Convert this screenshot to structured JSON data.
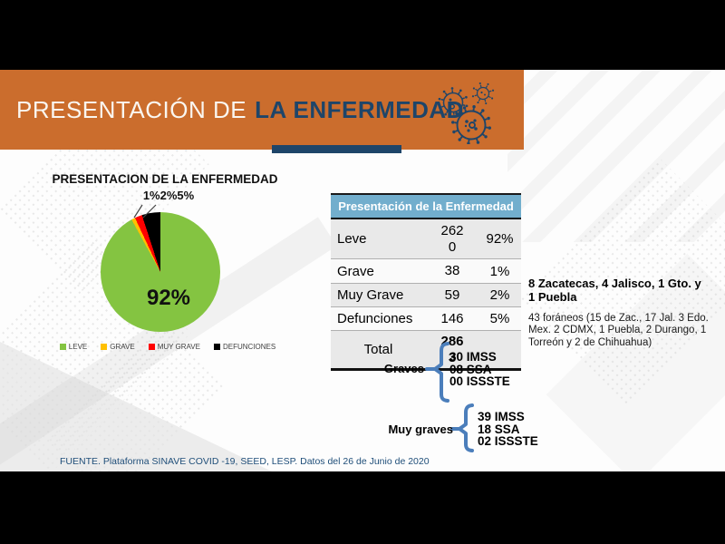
{
  "colors": {
    "banner_orange": "#CB6D2D",
    "navy": "#1E4569",
    "table_header_blue": "#72AECD",
    "bracket_blue": "#4B7EBB",
    "source_blue": "#1F4E79"
  },
  "header": {
    "title_regular": "PRESENTACIÓN DE",
    "title_bold": "LA ENFERMEDAD"
  },
  "chart_data": {
    "type": "pie",
    "title": "PRESENTACION DE LA ENFERMEDAD",
    "categories": [
      "LEVE",
      "GRAVE",
      "MUY GRAVE",
      "DEFUNCIONES"
    ],
    "values": [
      2620,
      38,
      59,
      146
    ],
    "percentages": [
      92,
      1,
      2,
      5
    ],
    "slice_colors": [
      "#84C441",
      "#FFC000",
      "#FF0000",
      "#000000"
    ],
    "small_slice_label": "1%2%5%",
    "big_slice_label": "92%",
    "legend_position": "bottom"
  },
  "legend": [
    {
      "label": "LEVE",
      "color": "#84C441"
    },
    {
      "label": "GRAVE",
      "color": "#FFC000"
    },
    {
      "label": "MUY GRAVE",
      "color": "#FF0000"
    },
    {
      "label": "DEFUNCIONES",
      "color": "#000000"
    }
  ],
  "table": {
    "title": "Presentación de la Enfermedad",
    "rows": [
      {
        "label": "Leve",
        "value": "2620",
        "pct": "92%"
      },
      {
        "label": "Grave",
        "value": "38",
        "pct": "1%"
      },
      {
        "label": "Muy Grave",
        "value": "59",
        "pct": "2%"
      },
      {
        "label": "Defunciones",
        "value": "146",
        "pct": "5%"
      }
    ],
    "total": {
      "label": "Total",
      "value": "2863"
    }
  },
  "annotations": {
    "graves": {
      "label": "Graves",
      "items": [
        "30 IMSS",
        "08 SSA",
        "00 ISSSTE"
      ]
    },
    "muy_graves": {
      "label": "Muy graves",
      "items": [
        "39 IMSS",
        "18 SSA",
        "02 ISSSTE"
      ]
    }
  },
  "sidebar_note": {
    "bold": "8 Zacatecas, 4  Jalisco, 1 Gto. y 1 Puebla",
    "regular": "43 foráneos (15 de Zac., 17 Jal. 3 Edo. Mex. 2 CDMX, 1 Puebla, 2 Durango, 1 Torreón y 2 de Chihuahua)"
  },
  "footer": {
    "source": "FUENTE. Plataforma SINAVE COVID -19, SEED, LESP. Datos del 26 de Junio de 2020"
  }
}
